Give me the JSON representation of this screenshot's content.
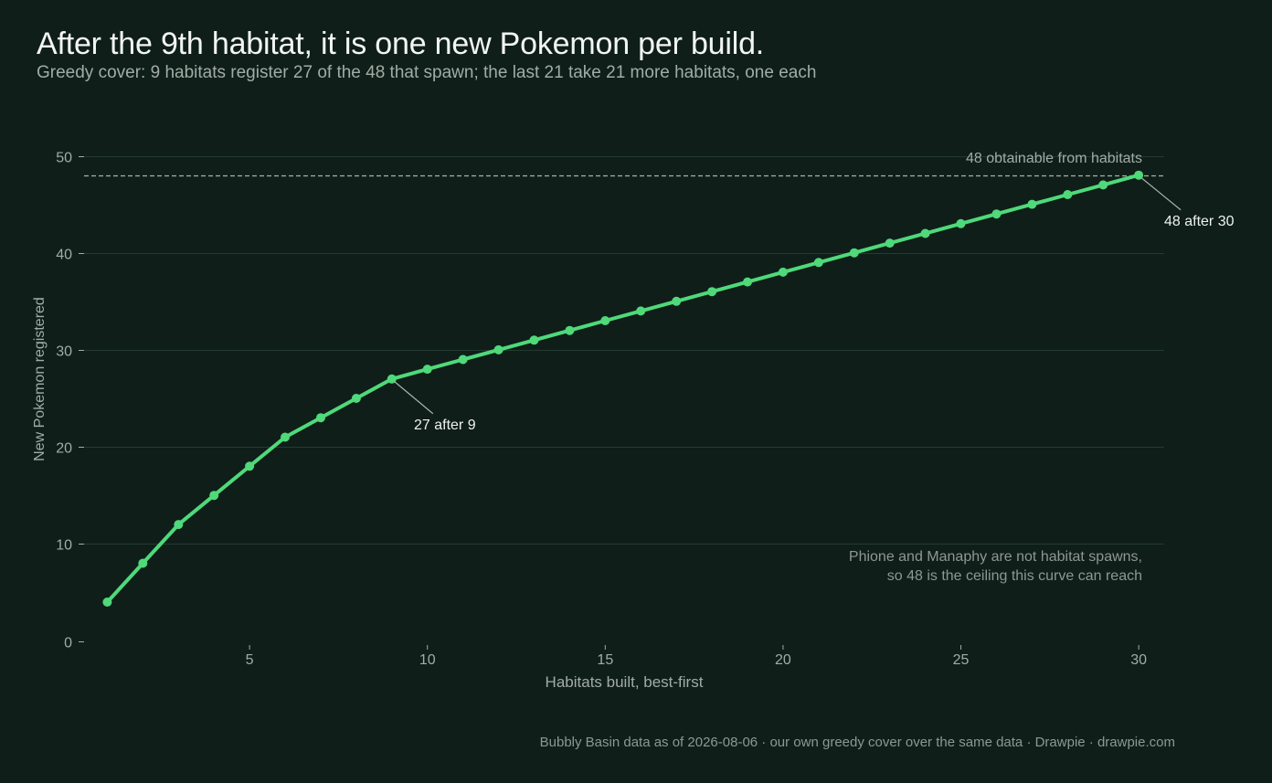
{
  "title": "After the 9th habitat, it is one new Pokemon per build.",
  "subtitle": "Greedy cover: 9 habitats register 27 of the 48 that spawn; the last 21 take 21 more habitats, one each",
  "footer": "Bubbly Basin data as of 2026-08-06  ·  our own greedy cover over the same data  ·  Drawpie · drawpie.com",
  "colors": {
    "background": "#0f1e19",
    "line": "#4fd97a",
    "grid": "#233a31",
    "text_muted": "#a2aca6",
    "reference": "#a7b2ac"
  },
  "chart_data": {
    "type": "line",
    "title": "After the 9th habitat, it is one new Pokemon per build.",
    "subtitle": "Greedy cover: 9 habitats register 27 of the 48 that spawn; the last 21 take 21 more habitats, one each",
    "xlabel": "Habitats built, best-first",
    "ylabel": "New Pokemon registered",
    "xlim": [
      0,
      30.6
    ],
    "ylim": [
      0,
      50
    ],
    "xticks": [
      5,
      10,
      15,
      20,
      25,
      30
    ],
    "yticks": [
      0,
      10,
      20,
      30,
      40,
      50
    ],
    "grid": "horizontal",
    "x": [
      1,
      2,
      3,
      4,
      5,
      6,
      7,
      8,
      9,
      10,
      11,
      12,
      13,
      14,
      15,
      16,
      17,
      18,
      19,
      20,
      21,
      22,
      23,
      24,
      25,
      26,
      27,
      28,
      29,
      30
    ],
    "y": [
      4,
      8,
      12,
      15,
      18,
      21,
      23,
      25,
      27,
      28,
      29,
      30,
      31,
      32,
      33,
      34,
      35,
      36,
      37,
      38,
      39,
      40,
      41,
      42,
      43,
      44,
      45,
      46,
      47,
      48
    ],
    "reference_line": {
      "y": 48,
      "label": "48 obtainable from habitats"
    },
    "annotations": [
      {
        "x": 9,
        "y": 27,
        "text": "27 after 9"
      },
      {
        "x": 30,
        "y": 48,
        "text": "48 after 30"
      }
    ],
    "note": [
      "Phione and Manaphy are not habitat spawns,",
      "so 48 is the ceiling this curve can reach"
    ]
  }
}
